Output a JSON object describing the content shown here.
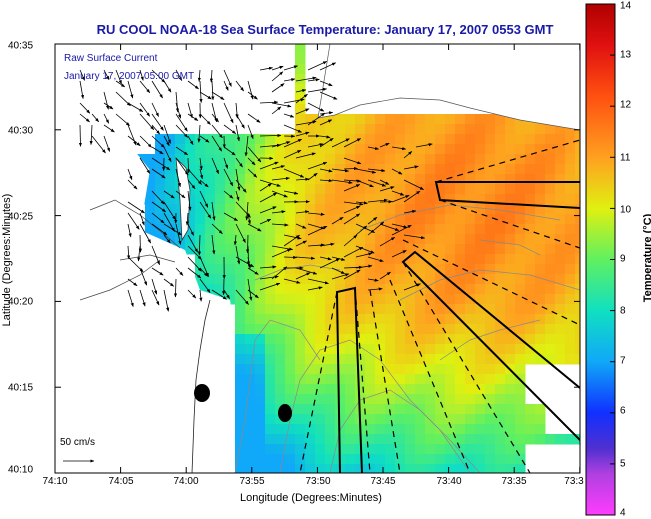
{
  "title": "RU COOL  NOAA-18  Sea Surface Temperature:  January 17, 2007 0553 GMT",
  "legend": {
    "line1": "Raw Surface Current",
    "line2": "January 17, 2007 05:00 GMT",
    "scale_label": "50 cm/s"
  },
  "axes": {
    "xlabel": "Longitude (Degrees:Minutes)",
    "ylabel": "Latitude (Degrees:Minutes)",
    "x_ticks": [
      "74:10",
      "74:05",
      "74:00",
      "73:55",
      "73:50",
      "73:45",
      "73:40",
      "73:35",
      "73:3"
    ],
    "y_ticks": [
      "40:35",
      "40:30",
      "40:25",
      "40:20",
      "40:15",
      "40:10"
    ]
  },
  "colorbar": {
    "label": "Temperature (°C)",
    "min": 4,
    "max": 14,
    "ticks": [
      "14",
      "13",
      "12",
      "11",
      "10",
      "9",
      "8",
      "7",
      "6",
      "5",
      "4"
    ]
  },
  "colors": {
    "title": "#1a1aa8",
    "land": "#ffffff",
    "coast": "#333333",
    "bathymetry": "#888888"
  }
}
